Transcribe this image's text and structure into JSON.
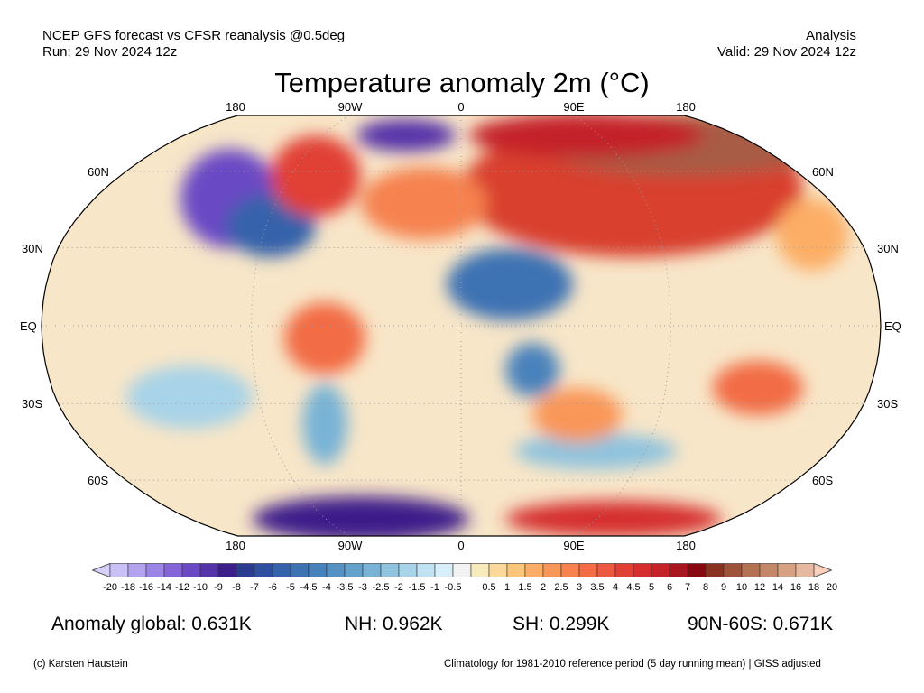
{
  "header": {
    "source": "NCEP GFS forecast vs CFSR reanalysis @0.5deg",
    "run": "Run: 29 Nov 2024 12z",
    "type": "Analysis",
    "valid": "Valid: 29 Nov 2024 12z"
  },
  "title": "Temperature anomaly 2m (°C)",
  "map": {
    "lon_labels": [
      "180",
      "90W",
      "0",
      "90E",
      "180"
    ],
    "lat_labels": [
      "60N",
      "30N",
      "EQ",
      "30S",
      "60S"
    ]
  },
  "colorbar": {
    "labels": [
      "-20",
      "-18",
      "-16",
      "-14",
      "-12",
      "-10",
      "-9",
      "-8",
      "-7",
      "-6",
      "-5",
      "-4.5",
      "-4",
      "-3.5",
      "-3",
      "-2.5",
      "-2",
      "-1.5",
      "-1",
      "-0.5",
      "0.5",
      "1",
      "1.5",
      "2",
      "2.5",
      "3",
      "3.5",
      "4",
      "4.5",
      "5",
      "6",
      "7",
      "8",
      "9",
      "10",
      "12",
      "14",
      "16",
      "18",
      "20"
    ],
    "low_extend_color": "#d7d0fa",
    "high_extend_color": "#fcd0bb",
    "colors": [
      "#c9c0f5",
      "#b3a3ef",
      "#9c83e6",
      "#8465d9",
      "#6b48c4",
      "#5533a8",
      "#3c1f8a",
      "#2c3b8f",
      "#2f4fa0",
      "#3562aa",
      "#3d72b3",
      "#4882bc",
      "#5592c4",
      "#64a2cc",
      "#78b3d6",
      "#8fc3de",
      "#a8d3e8",
      "#c0e2f1",
      "#d8eefa",
      "#f2f2f2",
      "#f7ebbe",
      "#fbd99a",
      "#fcc57a",
      "#fcae66",
      "#f99758",
      "#f6824f",
      "#f26c45",
      "#ec5840",
      "#e14036",
      "#d52d2d",
      "#c4232a",
      "#a81620",
      "#870810",
      "#8b3222",
      "#9f523a",
      "#b47153",
      "#c48868",
      "#d6a183",
      "#e6b8a0"
    ]
  },
  "stats": {
    "global": "Anomaly global: 0.631K",
    "nh": "NH: 0.962K",
    "sh": "SH: 0.299K",
    "arctic": "90N-60S: 0.671K"
  },
  "footer": {
    "credit": "(c) Karsten Haustein",
    "note": "Climatology for 1981-2010 reference period (5 day running mean) | GISS adjusted"
  }
}
